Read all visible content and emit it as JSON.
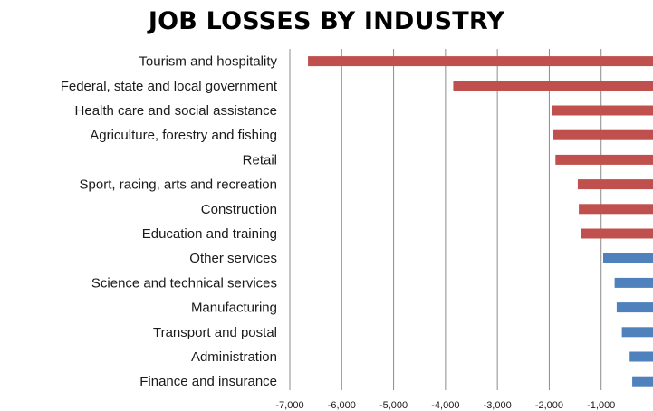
{
  "chart_data": {
    "type": "bar",
    "orientation": "horizontal",
    "title": "JOB LOSSES BY INDUSTRY",
    "xlabel": "",
    "ylabel": "",
    "xlim": [
      -7000,
      0
    ],
    "grid": true,
    "categories": [
      "Tourism and hospitality",
      "Federal, state and local government",
      "Health care and social assistance",
      "Agriculture, forestry and fishing",
      "Retail",
      "Sport, racing, arts and recreation",
      "Construction",
      "Education and training",
      "Other services",
      "Science and technical services",
      "Manufacturing",
      "Transport and postal",
      "Administration",
      "Finance and insurance"
    ],
    "values": [
      -6650,
      -3850,
      -1950,
      -1920,
      -1880,
      -1450,
      -1430,
      -1390,
      -960,
      -740,
      -700,
      -600,
      -450,
      -400
    ],
    "bar_colors": [
      "#c0504d",
      "#c0504d",
      "#c0504d",
      "#c0504d",
      "#c0504d",
      "#c0504d",
      "#c0504d",
      "#c0504d",
      "#4f81bd",
      "#4f81bd",
      "#4f81bd",
      "#4f81bd",
      "#4f81bd",
      "#4f81bd"
    ],
    "x_ticks": [
      -7000,
      -6000,
      -5000,
      -4000,
      -3000,
      -2000,
      -1000
    ],
    "x_tick_labels": [
      "-7,000",
      "-6,000",
      "-5,000",
      "-4,000",
      "-3,000",
      "-2,000",
      "-1,000"
    ]
  }
}
